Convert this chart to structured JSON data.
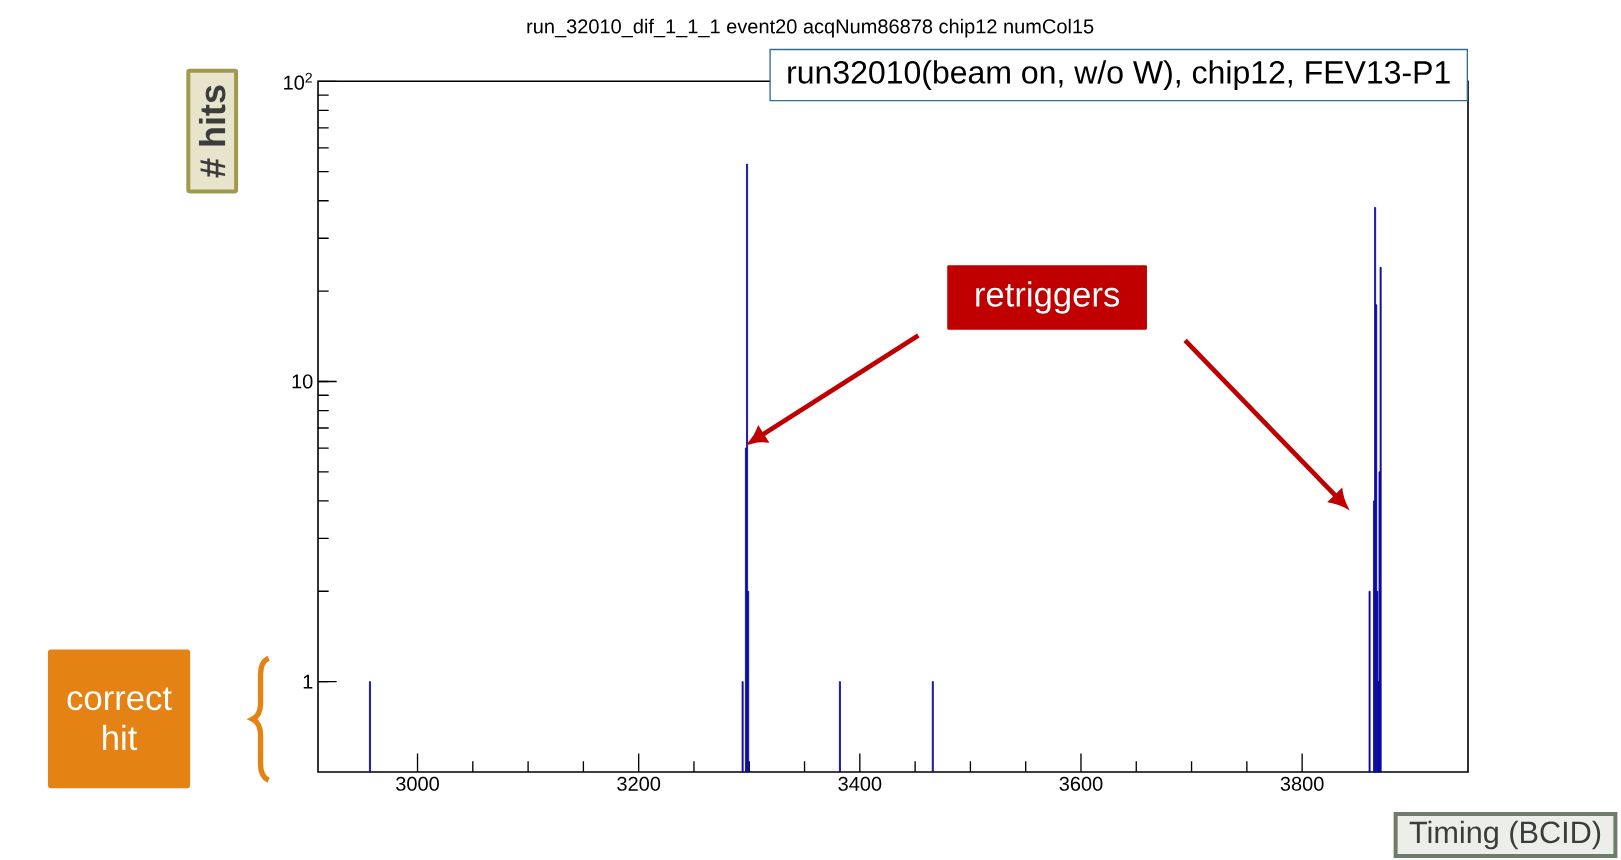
{
  "chart_data": {
    "type": "bar",
    "title": "run_32010_dif_1_1_1 event20 acqNum86878 chip12 numCol15",
    "xlabel": "Timing (BCID)",
    "ylabel": "# hits",
    "x": [
      2957,
      3294,
      3297,
      3298,
      3299,
      3382,
      3466,
      3861,
      3865,
      3866,
      3867,
      3868,
      3869,
      3870,
      3871
    ],
    "values": [
      1,
      1,
      6,
      53,
      2,
      1,
      1,
      2,
      4,
      38,
      18,
      2,
      1,
      5,
      24
    ],
    "color": "#0a0a9e",
    "xlim": [
      2910,
      3950
    ],
    "ylim": [
      0.5,
      100
    ],
    "xticks": [
      3000,
      3200,
      3400,
      3600,
      3800
    ],
    "yticks": [
      1,
      10,
      {
        "value": 100,
        "label": "10$^{2}$"
      }
    ],
    "log": true,
    "annotations": [
      "run32010(beam on, w/o W), chip12, FEV13-P1",
      "retriggers",
      "correct hit"
    ]
  }
}
